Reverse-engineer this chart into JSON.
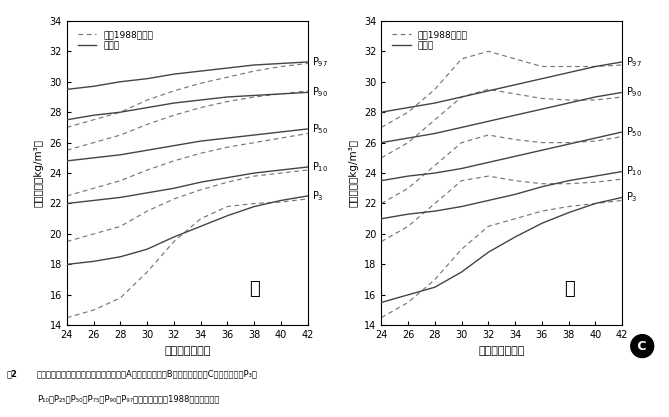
{
  "x": [
    24,
    26,
    28,
    30,
    32,
    34,
    36,
    38,
    40,
    42
  ],
  "male_solid": {
    "P97": [
      29.5,
      29.7,
      30.0,
      30.2,
      30.5,
      30.7,
      30.9,
      31.1,
      31.2,
      31.3
    ],
    "P90": [
      27.5,
      27.8,
      28.0,
      28.3,
      28.6,
      28.8,
      29.0,
      29.1,
      29.2,
      29.3
    ],
    "P50": [
      24.8,
      25.0,
      25.2,
      25.5,
      25.8,
      26.1,
      26.3,
      26.5,
      26.7,
      26.9
    ],
    "P10": [
      22.0,
      22.2,
      22.4,
      22.7,
      23.0,
      23.4,
      23.7,
      24.0,
      24.2,
      24.4
    ],
    "P3": [
      18.0,
      18.2,
      18.5,
      19.0,
      19.8,
      20.5,
      21.2,
      21.8,
      22.2,
      22.5
    ]
  },
  "male_dashed": {
    "P97": [
      27.0,
      27.5,
      28.0,
      28.8,
      29.4,
      29.9,
      30.3,
      30.7,
      31.0,
      31.2
    ],
    "P90": [
      25.5,
      26.0,
      26.5,
      27.2,
      27.8,
      28.3,
      28.7,
      29.0,
      29.2,
      29.4
    ],
    "P50": [
      22.5,
      23.0,
      23.5,
      24.2,
      24.8,
      25.3,
      25.7,
      26.0,
      26.3,
      26.6
    ],
    "P10": [
      19.5,
      20.0,
      20.5,
      21.5,
      22.3,
      22.9,
      23.4,
      23.8,
      24.0,
      24.2
    ],
    "P3": [
      14.5,
      15.0,
      15.8,
      17.5,
      19.5,
      21.0,
      21.8,
      22.0,
      22.1,
      22.3
    ]
  },
  "female_solid": {
    "P97": [
      28.0,
      28.3,
      28.6,
      29.0,
      29.4,
      29.8,
      30.2,
      30.6,
      31.0,
      31.3
    ],
    "P90": [
      26.0,
      26.3,
      26.6,
      27.0,
      27.4,
      27.8,
      28.2,
      28.6,
      29.0,
      29.3
    ],
    "P50": [
      23.5,
      23.8,
      24.0,
      24.3,
      24.7,
      25.1,
      25.5,
      25.9,
      26.3,
      26.7
    ],
    "P10": [
      21.0,
      21.3,
      21.5,
      21.8,
      22.2,
      22.6,
      23.1,
      23.5,
      23.8,
      24.1
    ],
    "P3": [
      15.5,
      16.0,
      16.5,
      17.5,
      18.8,
      19.8,
      20.7,
      21.4,
      22.0,
      22.4
    ]
  },
  "female_dashed": {
    "P97": [
      27.0,
      28.0,
      29.5,
      31.5,
      32.0,
      31.5,
      31.0,
      31.0,
      31.0,
      31.1
    ],
    "P90": [
      25.0,
      26.0,
      27.5,
      29.0,
      29.5,
      29.2,
      28.9,
      28.8,
      28.8,
      29.0
    ],
    "P50": [
      22.0,
      23.0,
      24.5,
      26.0,
      26.5,
      26.2,
      26.0,
      26.0,
      26.1,
      26.4
    ],
    "P10": [
      19.5,
      20.5,
      22.0,
      23.5,
      23.8,
      23.5,
      23.3,
      23.3,
      23.4,
      23.6
    ],
    "P3": [
      14.5,
      15.5,
      17.0,
      19.0,
      20.5,
      21.0,
      21.5,
      21.8,
      22.0,
      22.2
    ]
  },
  "percentile_labels": [
    "P97",
    "P90",
    "P50",
    "P10",
    "P3"
  ],
  "ylabel": "重量指数（kg/m³）",
  "xlabel": "出生胎龄（周）",
  "ylim": [
    14,
    34
  ],
  "xlim": [
    24,
    42
  ],
  "yticks": [
    14,
    16,
    18,
    20,
    22,
    24,
    26,
    28,
    30,
    32,
    34
  ],
  "xticks": [
    24,
    26,
    28,
    30,
    32,
    34,
    36,
    38,
    40,
    42
  ],
  "male_label": "男",
  "female_label": "女",
  "legend_dashed": "我国1988年数值",
  "legend_solid": "本研究",
  "circle_label": "C",
  "line_color": "#444444",
  "dashed_color": "#777777",
  "background_color": "#ffffff",
  "caption_bold": "图2",
  "caption_text": "  本研究不同出生胎龄新生儿体重身长比（A）、体质指数（B）和重量指数（C）百分位数（P₃、",
  "caption_text2": "  P₁₀、P₂₅、P₅₀、P₇₅、P₉₀、P₉₇）参照值与我国1988年数值的比较"
}
